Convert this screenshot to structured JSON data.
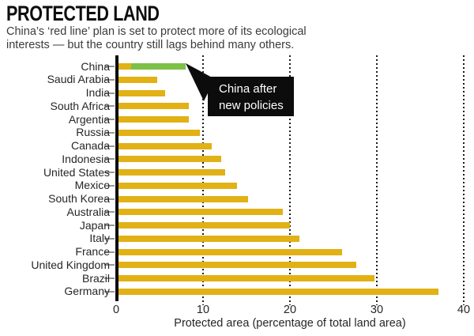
{
  "header": {
    "title": "PROTECTED LAND",
    "subtitle_line1": "China’s ‘red line’ plan is set to protect more of its ecological",
    "subtitle_line2": "interests — but the country still lags behind many others."
  },
  "annotation": {
    "line1": "China after",
    "line2": "new policies"
  },
  "chart_data": {
    "type": "bar",
    "orientation": "horizontal",
    "title": "PROTECTED LAND",
    "xlabel": "Protected area (percentage of total land area)",
    "xlim": [
      0,
      40
    ],
    "xticks": [
      0,
      10,
      20,
      30,
      40
    ],
    "grid": "vertical-dotted",
    "legend": "none",
    "bar_color": "#e1b115",
    "highlight_color": "#7dc046",
    "categories": [
      "China",
      "Saudi Arabia",
      "India",
      "South Africa",
      "Argentia",
      "Russia",
      "Canada",
      "Indonesia",
      "United States",
      "Mexico",
      "South Korea",
      "Australia",
      "Japan",
      "Italy",
      "France",
      "United Kingdom",
      "Brazil",
      "Germany"
    ],
    "values": [
      8.0,
      4.7,
      5.6,
      8.4,
      8.4,
      9.6,
      11.0,
      12.1,
      12.5,
      13.9,
      15.2,
      19.2,
      20.0,
      21.1,
      26.0,
      27.6,
      29.7,
      37.1
    ],
    "china_highlight": {
      "category": "China",
      "pre_policy_value": 1.7,
      "post_policy_value": 8.0,
      "label": "China after new policies"
    }
  }
}
